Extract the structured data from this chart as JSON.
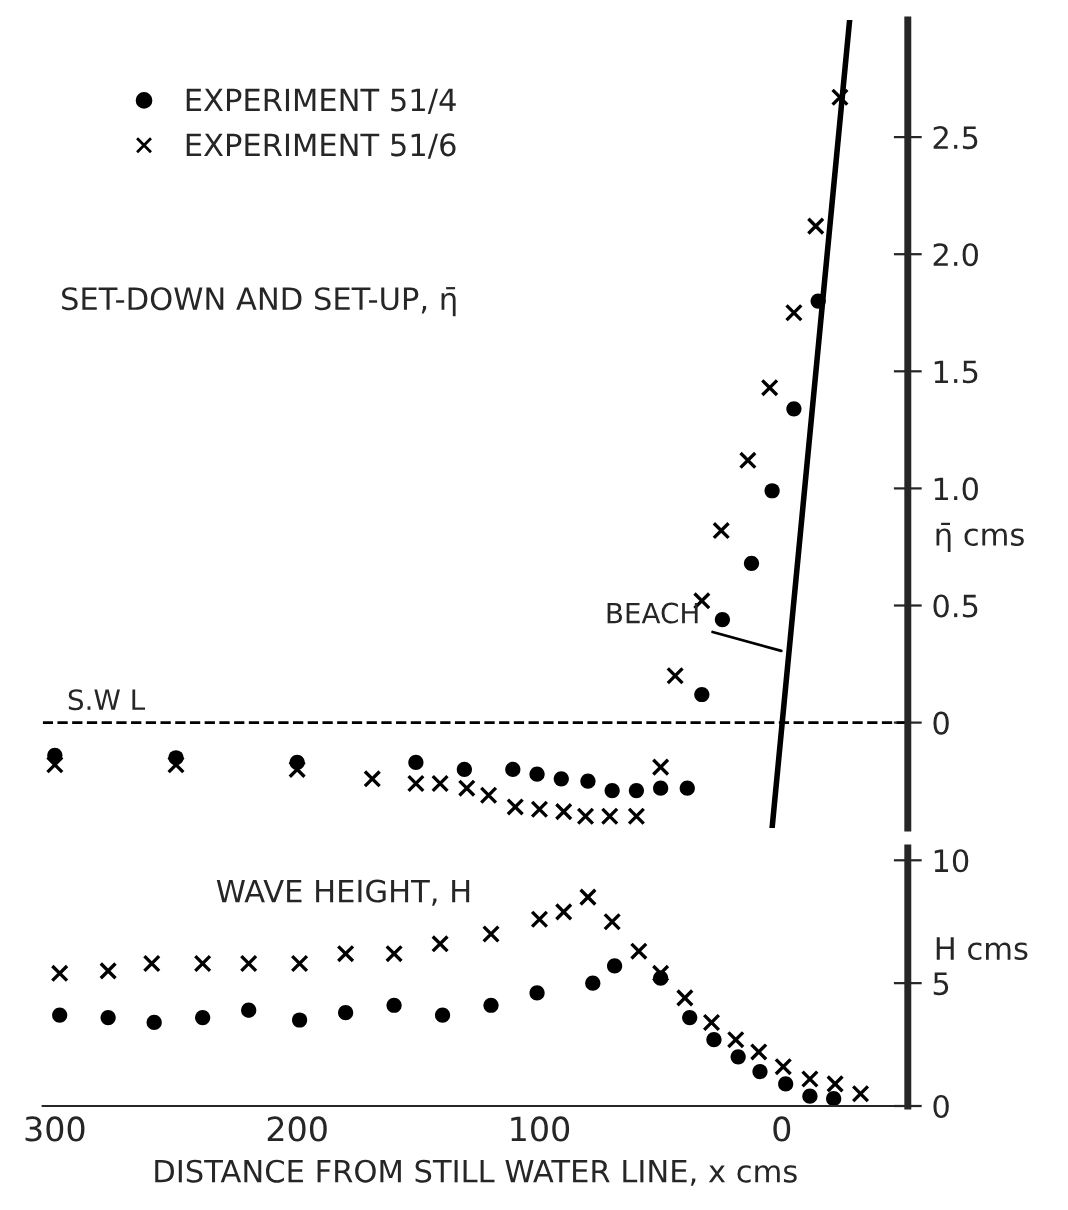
{
  "chart_data": [
    {
      "type": "scatter",
      "annotations": [
        "SET-DOWN AND SET-UP, η̄",
        {
          "text": "BEACH",
          "x": -2,
          "y": 0.3
        }
      ],
      "ylabel": "η̄ cms",
      "xlim": [
        305,
        -52
      ],
      "ylim": [
        -0.45,
        3.0
      ],
      "yticks": [
        0,
        0.5,
        {
          "value": 1,
          "label": "1.0"
        },
        1.5,
        {
          "value": 2,
          "label": "2.0"
        },
        2.5
      ],
      "tick_labels": "y",
      "legend": "top left",
      "grid": false,
      "ref_lines": [
        {
          "axis": "y",
          "value": 0,
          "label": "S.W L",
          "line_style": "dashed",
          "color": "#000000"
        }
      ],
      "series": [
        {
          "name": "EXPERIMENT 51/4",
          "color": "#000000",
          "marker": "circle",
          "x": [
            300,
            250,
            200,
            151,
            131,
            111,
            101,
            91,
            80,
            70,
            60,
            50,
            39,
            33,
            24.5,
            12.5,
            4,
            -5,
            -15
          ],
          "values": [
            -0.14,
            -0.15,
            -0.17,
            -0.17,
            -0.2,
            -0.2,
            -0.22,
            -0.24,
            -0.25,
            -0.29,
            -0.29,
            -0.28,
            -0.28,
            0.12,
            0.44,
            0.68,
            0.99,
            1.34,
            1.8
          ]
        },
        {
          "name": "EXPERIMENT 51/6",
          "color": "#000000",
          "marker": "cross",
          "x": [
            300,
            250,
            200,
            169,
            151,
            141,
            130,
            121,
            110,
            100,
            90,
            81,
            71,
            60,
            50,
            44,
            33,
            25,
            14,
            5,
            -5,
            -14,
            -24
          ],
          "values": [
            -0.18,
            -0.18,
            -0.2,
            -0.24,
            -0.26,
            -0.26,
            -0.28,
            -0.31,
            -0.36,
            -0.37,
            -0.38,
            -0.4,
            -0.4,
            -0.4,
            -0.19,
            0.2,
            0.52,
            0.82,
            1.12,
            1.43,
            1.75,
            2.12,
            2.67
          ]
        },
        {
          "type": "line",
          "color": "#000000",
          "line_style": "solid",
          "marker": "none",
          "x": [
            -28,
            4
          ],
          "values": [
            3.0,
            -0.45
          ]
        }
      ]
    },
    {
      "type": "scatter",
      "annotations": [
        "WAVE HEIGHT, H"
      ],
      "xlabel": "DISTANCE FROM STILL WATER LINE, x cms",
      "ylabel": "H cms",
      "xlim": [
        305,
        -52
      ],
      "ylim": [
        0,
        10.5
      ],
      "xticks": [
        300,
        200,
        100,
        0
      ],
      "yticks": [
        0,
        5,
        10
      ],
      "grid": false,
      "series": [
        {
          "color": "#000000",
          "marker": "circle",
          "x": [
            298,
            278,
            259,
            239,
            220,
            199,
            180,
            160,
            140,
            120,
            101,
            78,
            69,
            50,
            38,
            28,
            18,
            9,
            -1.6,
            -11.6,
            -21.4
          ],
          "values": [
            3.7,
            3.6,
            3.4,
            3.6,
            3.9,
            3.5,
            3.8,
            4.1,
            3.7,
            4.1,
            4.6,
            5.0,
            5.7,
            5.2,
            3.6,
            2.7,
            2.0,
            1.4,
            0.9,
            0.4,
            0.3
          ]
        },
        {
          "color": "#000000",
          "marker": "cross",
          "x": [
            298,
            278,
            260,
            239,
            220,
            199,
            180,
            160,
            141,
            120,
            100,
            90,
            80,
            70,
            59,
            50,
            40,
            29,
            19,
            9.5,
            -0.6,
            -11.6,
            -22,
            -32.5
          ],
          "values": [
            5.4,
            5.5,
            5.8,
            5.8,
            5.8,
            5.8,
            6.2,
            6.2,
            6.6,
            7.0,
            7.6,
            7.9,
            8.5,
            7.5,
            6.3,
            5.4,
            4.4,
            3.4,
            2.7,
            2.2,
            1.6,
            1.1,
            0.9,
            0.5
          ]
        }
      ]
    }
  ]
}
